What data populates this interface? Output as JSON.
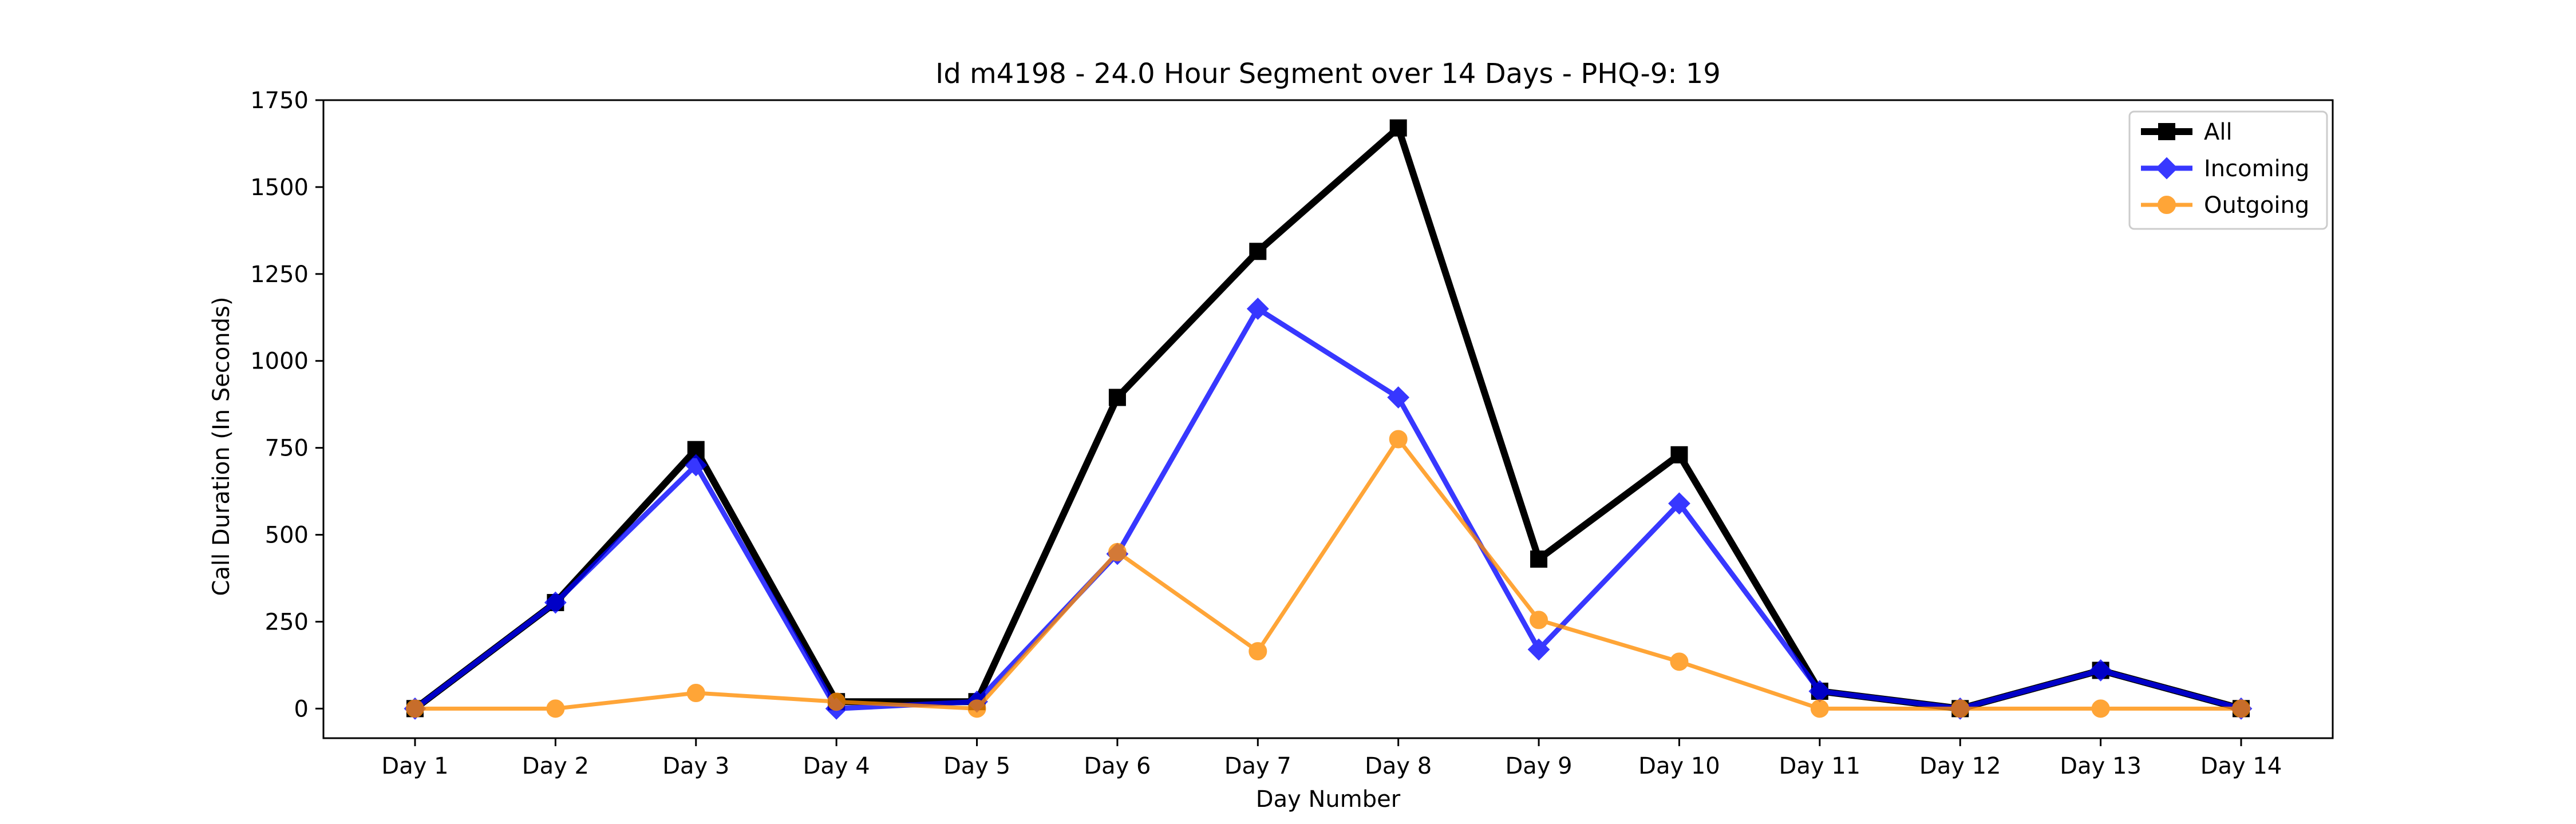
{
  "chart_data": {
    "type": "line",
    "title": "Id m4198 - 24.0 Hour Segment over 14 Days - PHQ-9: 19",
    "xlabel": "Day Number",
    "ylabel": "Call Duration (In Seconds)",
    "categories": [
      "Day 1",
      "Day 2",
      "Day 3",
      "Day 4",
      "Day 5",
      "Day 6",
      "Day 7",
      "Day 8",
      "Day 9",
      "Day 10",
      "Day 11",
      "Day 12",
      "Day 13",
      "Day 14"
    ],
    "ylim": [
      -85,
      1750
    ],
    "yticks": [
      0,
      250,
      500,
      750,
      1000,
      1250,
      1500,
      1750
    ],
    "grid": false,
    "legend_position": "top-right",
    "series": [
      {
        "name": "All",
        "color": "#000000",
        "marker": "square",
        "values": [
          0,
          305,
          745,
          20,
          20,
          895,
          1315,
          1670,
          430,
          730,
          50,
          0,
          110,
          0
        ]
      },
      {
        "name": "Incoming",
        "color": "#0000ff",
        "marker": "diamond",
        "values": [
          0,
          305,
          700,
          0,
          20,
          445,
          1150,
          895,
          170,
          590,
          50,
          0,
          110,
          0
        ]
      },
      {
        "name": "Outgoing",
        "color": "#ff8c00",
        "marker": "circle",
        "values": [
          0,
          0,
          45,
          20,
          0,
          450,
          165,
          775,
          255,
          135,
          0,
          0,
          0,
          0
        ]
      }
    ]
  }
}
